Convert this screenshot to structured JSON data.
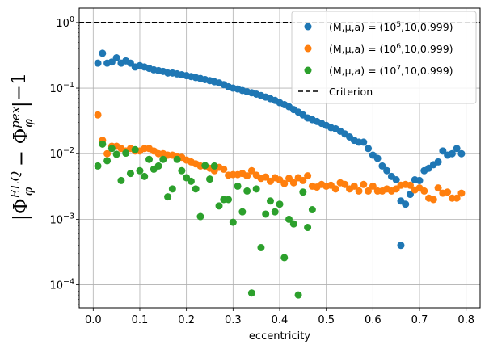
{
  "chart_data": {
    "type": "scatter",
    "xlabel": "eccentricity",
    "ylabel_parts": {
      "abs": "|",
      "phi1": "Φ",
      "sup1": "ELQ",
      "sub1": "φ",
      "op": " − Φ",
      "sup2": "pex",
      "sub2": "φ",
      "tail": "|",
      "exp": "−1"
    },
    "yscale": "log",
    "xlim": [
      -0.03,
      0.83
    ],
    "ylim_log10": [
      -4.35,
      0.22
    ],
    "grid": true,
    "legend_position": "top-right",
    "x_ticks": [
      0.0,
      0.1,
      0.2,
      0.3,
      0.4,
      0.5,
      0.6,
      0.7,
      0.8
    ],
    "x_tick_labels": [
      "0.0",
      "0.1",
      "0.2",
      "0.3",
      "0.4",
      "0.5",
      "0.6",
      "0.7",
      "0.8"
    ],
    "y_ticks": [
      {
        "base": "10",
        "exp": "0",
        "value": 1
      },
      {
        "base": "10",
        "exp": "−1",
        "value": 0.1
      },
      {
        "base": "10",
        "exp": "−2",
        "value": 0.01
      },
      {
        "base": "10",
        "exp": "−3",
        "value": 0.001
      },
      {
        "base": "10",
        "exp": "−4",
        "value": 0.0001
      }
    ],
    "criterion": {
      "name": "Criterion",
      "y": 1.0,
      "color": "#000000"
    },
    "series": [
      {
        "name_parts": {
          "a": "(M,μ,a) = (10",
          "b": "5",
          "c": ",10,0.999)"
        },
        "color": "#1f77b4",
        "points": [
          [
            0.01,
            0.24
          ],
          [
            0.02,
            0.34
          ],
          [
            0.03,
            0.24
          ],
          [
            0.04,
            0.25
          ],
          [
            0.05,
            0.29
          ],
          [
            0.06,
            0.24
          ],
          [
            0.07,
            0.26
          ],
          [
            0.08,
            0.24
          ],
          [
            0.09,
            0.21
          ],
          [
            0.1,
            0.22
          ],
          [
            0.11,
            0.21
          ],
          [
            0.12,
            0.2
          ],
          [
            0.13,
            0.19
          ],
          [
            0.14,
            0.185
          ],
          [
            0.15,
            0.18
          ],
          [
            0.16,
            0.17
          ],
          [
            0.17,
            0.17
          ],
          [
            0.18,
            0.165
          ],
          [
            0.19,
            0.16
          ],
          [
            0.2,
            0.155
          ],
          [
            0.21,
            0.15
          ],
          [
            0.22,
            0.145
          ],
          [
            0.23,
            0.14
          ],
          [
            0.24,
            0.135
          ],
          [
            0.25,
            0.13
          ],
          [
            0.26,
            0.125
          ],
          [
            0.27,
            0.12
          ],
          [
            0.28,
            0.113
          ],
          [
            0.29,
            0.105
          ],
          [
            0.3,
            0.1
          ],
          [
            0.31,
            0.097
          ],
          [
            0.32,
            0.092
          ],
          [
            0.33,
            0.088
          ],
          [
            0.34,
            0.085
          ],
          [
            0.35,
            0.081
          ],
          [
            0.36,
            0.077
          ],
          [
            0.37,
            0.073
          ],
          [
            0.38,
            0.069
          ],
          [
            0.39,
            0.065
          ],
          [
            0.4,
            0.06
          ],
          [
            0.41,
            0.056
          ],
          [
            0.42,
            0.052
          ],
          [
            0.43,
            0.047
          ],
          [
            0.44,
            0.043
          ],
          [
            0.45,
            0.039
          ],
          [
            0.46,
            0.035
          ],
          [
            0.47,
            0.033
          ],
          [
            0.48,
            0.031
          ],
          [
            0.49,
            0.029
          ],
          [
            0.5,
            0.027
          ],
          [
            0.51,
            0.025
          ],
          [
            0.52,
            0.024
          ],
          [
            0.53,
            0.022
          ],
          [
            0.54,
            0.02
          ],
          [
            0.55,
            0.018
          ],
          [
            0.56,
            0.016
          ],
          [
            0.57,
            0.015
          ],
          [
            0.58,
            0.015
          ],
          [
            0.59,
            0.012
          ],
          [
            0.6,
            0.0095
          ],
          [
            0.61,
            0.0085
          ],
          [
            0.62,
            0.0065
          ],
          [
            0.63,
            0.0055
          ],
          [
            0.64,
            0.0045
          ],
          [
            0.65,
            0.004
          ],
          [
            0.66,
            0.0019
          ],
          [
            0.66,
            0.0004
          ],
          [
            0.67,
            0.0017
          ],
          [
            0.68,
            0.0024
          ],
          [
            0.69,
            0.004
          ],
          [
            0.7,
            0.0039
          ],
          [
            0.71,
            0.0055
          ],
          [
            0.72,
            0.006
          ],
          [
            0.73,
            0.0068
          ],
          [
            0.74,
            0.0075
          ],
          [
            0.75,
            0.011
          ],
          [
            0.76,
            0.0095
          ],
          [
            0.77,
            0.01
          ],
          [
            0.78,
            0.012
          ],
          [
            0.79,
            0.01
          ]
        ]
      },
      {
        "name_parts": {
          "a": "(M,μ,a) = (10",
          "b": "6",
          "c": ",10,0.999)"
        },
        "color": "#ff7f0e",
        "points": [
          [
            0.01,
            0.039
          ],
          [
            0.02,
            0.016
          ],
          [
            0.03,
            0.01
          ],
          [
            0.04,
            0.013
          ],
          [
            0.05,
            0.013
          ],
          [
            0.06,
            0.012
          ],
          [
            0.07,
            0.011
          ],
          [
            0.08,
            0.012
          ],
          [
            0.09,
            0.011
          ],
          [
            0.1,
            0.011
          ],
          [
            0.11,
            0.012
          ],
          [
            0.12,
            0.012
          ],
          [
            0.13,
            0.011
          ],
          [
            0.14,
            0.01
          ],
          [
            0.15,
            0.01
          ],
          [
            0.16,
            0.0095
          ],
          [
            0.17,
            0.0095
          ],
          [
            0.18,
            0.009
          ],
          [
            0.19,
            0.0088
          ],
          [
            0.2,
            0.008
          ],
          [
            0.21,
            0.0075
          ],
          [
            0.22,
            0.007
          ],
          [
            0.23,
            0.0065
          ],
          [
            0.24,
            0.0065
          ],
          [
            0.25,
            0.006
          ],
          [
            0.26,
            0.0055
          ],
          [
            0.27,
            0.0062
          ],
          [
            0.28,
            0.0058
          ],
          [
            0.29,
            0.0047
          ],
          [
            0.3,
            0.0048
          ],
          [
            0.31,
            0.0048
          ],
          [
            0.32,
            0.005
          ],
          [
            0.33,
            0.0046
          ],
          [
            0.34,
            0.0055
          ],
          [
            0.35,
            0.0047
          ],
          [
            0.36,
            0.0042
          ],
          [
            0.37,
            0.0044
          ],
          [
            0.38,
            0.0038
          ],
          [
            0.39,
            0.0043
          ],
          [
            0.4,
            0.004
          ],
          [
            0.41,
            0.0035
          ],
          [
            0.42,
            0.0042
          ],
          [
            0.43,
            0.0036
          ],
          [
            0.44,
            0.0043
          ],
          [
            0.45,
            0.0039
          ],
          [
            0.46,
            0.0046
          ],
          [
            0.47,
            0.0032
          ],
          [
            0.48,
            0.0031
          ],
          [
            0.49,
            0.0034
          ],
          [
            0.5,
            0.0032
          ],
          [
            0.51,
            0.0033
          ],
          [
            0.52,
            0.0029
          ],
          [
            0.53,
            0.0036
          ],
          [
            0.54,
            0.0034
          ],
          [
            0.55,
            0.0029
          ],
          [
            0.56,
            0.0032
          ],
          [
            0.57,
            0.0027
          ],
          [
            0.58,
            0.0034
          ],
          [
            0.59,
            0.0027
          ],
          [
            0.6,
            0.0032
          ],
          [
            0.61,
            0.0027
          ],
          [
            0.62,
            0.0027
          ],
          [
            0.63,
            0.0029
          ],
          [
            0.64,
            0.0027
          ],
          [
            0.65,
            0.0029
          ],
          [
            0.66,
            0.0033
          ],
          [
            0.67,
            0.0034
          ],
          [
            0.68,
            0.0033
          ],
          [
            0.69,
            0.0028
          ],
          [
            0.7,
            0.003
          ],
          [
            0.71,
            0.0027
          ],
          [
            0.72,
            0.0021
          ],
          [
            0.73,
            0.002
          ],
          [
            0.74,
            0.003
          ],
          [
            0.75,
            0.0025
          ],
          [
            0.76,
            0.0026
          ],
          [
            0.77,
            0.0021
          ],
          [
            0.78,
            0.0021
          ],
          [
            0.79,
            0.0025
          ]
        ]
      },
      {
        "name_parts": {
          "a": "(M,μ,a) = (10",
          "b": "7",
          "c": ",10,0.999)"
        },
        "color": "#2ca02c",
        "points": [
          [
            0.01,
            0.0065
          ],
          [
            0.02,
            0.014
          ],
          [
            0.03,
            0.0078
          ],
          [
            0.04,
            0.012
          ],
          [
            0.05,
            0.0098
          ],
          [
            0.06,
            0.0039
          ],
          [
            0.07,
            0.0102
          ],
          [
            0.08,
            0.005
          ],
          [
            0.09,
            0.0115
          ],
          [
            0.1,
            0.0055
          ],
          [
            0.11,
            0.0045
          ],
          [
            0.12,
            0.0082
          ],
          [
            0.13,
            0.0058
          ],
          [
            0.14,
            0.0065
          ],
          [
            0.15,
            0.0082
          ],
          [
            0.16,
            0.0022
          ],
          [
            0.17,
            0.0029
          ],
          [
            0.18,
            0.0082
          ],
          [
            0.19,
            0.0055
          ],
          [
            0.2,
            0.0043
          ],
          [
            0.21,
            0.0038
          ],
          [
            0.22,
            0.0029
          ],
          [
            0.23,
            0.0011
          ],
          [
            0.24,
            0.0066
          ],
          [
            0.25,
            0.0041
          ],
          [
            0.26,
            0.0065
          ],
          [
            0.27,
            0.0016
          ],
          [
            0.28,
            0.002
          ],
          [
            0.29,
            0.002
          ],
          [
            0.3,
            0.0009
          ],
          [
            0.31,
            0.0032
          ],
          [
            0.32,
            0.0013
          ],
          [
            0.33,
            0.0027
          ],
          [
            0.34,
            7.5e-05
          ],
          [
            0.35,
            0.0029
          ],
          [
            0.36,
            0.00037
          ],
          [
            0.37,
            0.0012
          ],
          [
            0.38,
            0.0019
          ],
          [
            0.39,
            0.0013
          ],
          [
            0.4,
            0.0017
          ],
          [
            0.41,
            0.00026
          ],
          [
            0.42,
            0.001
          ],
          [
            0.43,
            0.00085
          ],
          [
            0.44,
            7e-05
          ],
          [
            0.45,
            0.0026
          ],
          [
            0.46,
            0.00075
          ],
          [
            0.47,
            0.0014
          ]
        ]
      }
    ]
  }
}
